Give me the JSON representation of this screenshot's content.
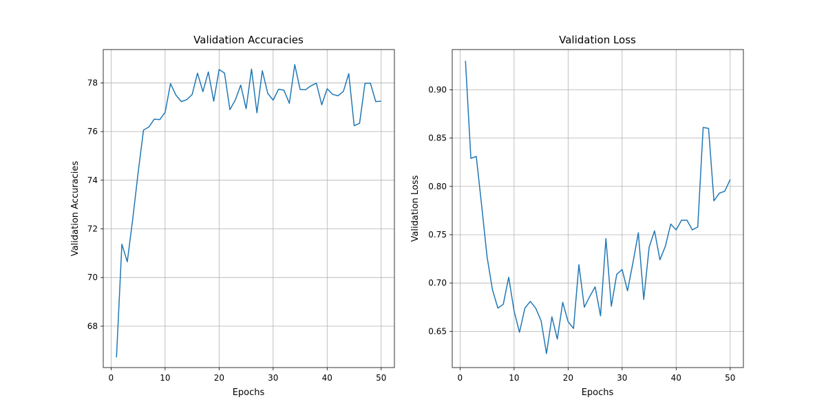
{
  "colors": {
    "line": "#1f77b4",
    "grid": "#b0b0b0",
    "axes": "#000000",
    "background": "#ffffff"
  },
  "chart_data": [
    {
      "type": "line",
      "title": "Validation Accuracies",
      "xlabel": "Epochs",
      "ylabel": "Validation Accuracies",
      "xlim": [
        -1.45,
        52.45
      ],
      "ylim": [
        66.3,
        79.37
      ],
      "grid": true,
      "x_ticks": [
        0,
        10,
        20,
        30,
        40,
        50
      ],
      "y_ticks": [
        68,
        70,
        72,
        74,
        76,
        78
      ],
      "series": [
        {
          "x": [
            1,
            2,
            3,
            4,
            5,
            6,
            7,
            8,
            9,
            10,
            11,
            12,
            13,
            14,
            15,
            16,
            17,
            18,
            19,
            20,
            21,
            22,
            23,
            24,
            25,
            26,
            27,
            28,
            29,
            30,
            31,
            32,
            33,
            34,
            35,
            36,
            37,
            38,
            39,
            40,
            41,
            42,
            43,
            44,
            45,
            46,
            47,
            48,
            49,
            50
          ],
          "values": [
            66.72,
            71.37,
            70.65,
            72.39,
            74.3,
            76.06,
            76.19,
            76.51,
            76.49,
            76.79,
            77.97,
            77.5,
            77.23,
            77.31,
            77.52,
            78.4,
            77.64,
            78.45,
            77.25,
            78.55,
            78.4,
            76.9,
            77.3,
            77.91,
            76.94,
            78.57,
            76.77,
            78.5,
            77.57,
            77.29,
            77.74,
            77.7,
            77.16,
            78.75,
            77.73,
            77.72,
            77.88,
            77.99,
            77.1,
            77.76,
            77.53,
            77.47,
            77.65,
            78.38,
            76.24,
            76.34,
            77.98,
            77.99,
            77.23,
            77.25
          ]
        }
      ]
    },
    {
      "type": "line",
      "title": "Validation Loss",
      "xlabel": "Epochs",
      "ylabel": "Validation Loss",
      "xlim": [
        -1.45,
        52.45
      ],
      "ylim": [
        0.6125,
        0.9416
      ],
      "grid": true,
      "x_ticks": [
        0,
        10,
        20,
        30,
        40,
        50
      ],
      "y_ticks": [
        0.65,
        0.7,
        0.75,
        0.8,
        0.85,
        0.9
      ],
      "y_tick_labels": [
        "0.65",
        "0.70",
        "0.75",
        "0.80",
        "0.85",
        "0.90"
      ],
      "series": [
        {
          "x": [
            1,
            2,
            3,
            4,
            5,
            6,
            7,
            8,
            9,
            10,
            11,
            12,
            13,
            14,
            15,
            16,
            17,
            18,
            19,
            20,
            21,
            22,
            23,
            24,
            25,
            26,
            27,
            28,
            29,
            30,
            31,
            32,
            33,
            34,
            35,
            36,
            37,
            38,
            39,
            40,
            41,
            42,
            43,
            44,
            45,
            46,
            47,
            48,
            49,
            50
          ],
          "values": [
            0.93,
            0.829,
            0.831,
            0.78,
            0.727,
            0.693,
            0.674,
            0.678,
            0.706,
            0.671,
            0.649,
            0.674,
            0.681,
            0.674,
            0.661,
            0.627,
            0.665,
            0.642,
            0.68,
            0.66,
            0.653,
            0.719,
            0.675,
            0.686,
            0.696,
            0.666,
            0.746,
            0.676,
            0.709,
            0.714,
            0.692,
            0.721,
            0.752,
            0.683,
            0.737,
            0.754,
            0.724,
            0.738,
            0.761,
            0.755,
            0.765,
            0.765,
            0.755,
            0.758,
            0.861,
            0.86,
            0.785,
            0.793,
            0.795,
            0.807
          ]
        }
      ]
    }
  ]
}
